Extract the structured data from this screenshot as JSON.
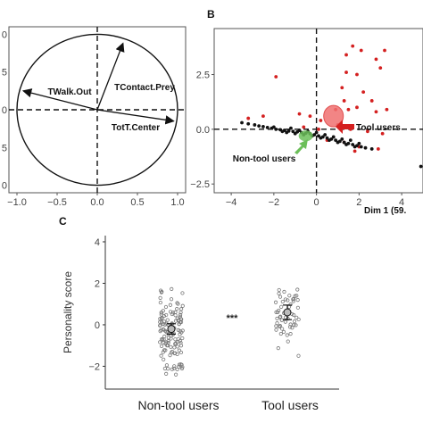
{
  "chart_data": [
    {
      "panel_label": "",
      "type": "scatter",
      "subtype": "correlation-circle",
      "xlim": [
        -1.1,
        1.1
      ],
      "ylim": [
        -1.1,
        1.1
      ],
      "x_ticks": [
        "−1.0",
        "−0.5",
        "0.0",
        "0.5",
        "1.0"
      ],
      "y_ticks": [
        "0",
        "5",
        "0",
        "5",
        "0"
      ],
      "vectors": [
        {
          "name": "TWalk.Out",
          "x": -0.92,
          "y": 0.25
        },
        {
          "name": "TContact.Prey",
          "x": 0.32,
          "y": 0.88
        },
        {
          "name": "TotT.Center",
          "x": 0.95,
          "y": -0.15
        }
      ]
    },
    {
      "panel_label": "B",
      "type": "scatter",
      "xlim": [
        -4.8,
        5.0
      ],
      "ylim": [
        -2.9,
        4.6
      ],
      "x_ticks": [
        "−4",
        "−2",
        "0",
        "2",
        "4"
      ],
      "y_ticks": [
        "2.5",
        "0.0",
        "−2.5"
      ],
      "xlabel": "Dim 1 (59.",
      "annotations": [
        "Tool users",
        "Non-tool users"
      ],
      "centroids": [
        {
          "name": "Tool users",
          "x": 0.8,
          "y": 0.6,
          "color": "#f07070"
        },
        {
          "name": "Non-tool users",
          "x": -0.5,
          "y": -0.3,
          "color": "#6cbf5a"
        }
      ],
      "series": [
        {
          "color": "#d42020",
          "points": [
            [
              1.7,
              3.8
            ],
            [
              2.1,
              3.6
            ],
            [
              2.8,
              3.2
            ],
            [
              3.2,
              3.6
            ],
            [
              1.4,
              3.4
            ],
            [
              3.0,
              2.8
            ],
            [
              1.4,
              2.6
            ],
            [
              1.9,
              2.5
            ],
            [
              -1.9,
              2.4
            ],
            [
              1.2,
              1.9
            ],
            [
              2.2,
              1.7
            ],
            [
              1.3,
              1.3
            ],
            [
              2.6,
              1.3
            ],
            [
              0.9,
              0.9
            ],
            [
              1.5,
              0.9
            ],
            [
              1.9,
              1.0
            ],
            [
              2.8,
              0.8
            ],
            [
              3.3,
              0.9
            ],
            [
              -0.8,
              0.7
            ],
            [
              -0.3,
              0.6
            ],
            [
              0.2,
              0.4
            ],
            [
              1.0,
              0.2
            ],
            [
              1.6,
              0.0
            ],
            [
              2.4,
              -0.1
            ],
            [
              3.1,
              -0.2
            ],
            [
              0.5,
              -0.5
            ],
            [
              1.3,
              -0.6
            ],
            [
              2.0,
              -0.8
            ],
            [
              -3.2,
              0.5
            ],
            [
              -2.5,
              0.6
            ],
            [
              -0.6,
              0.1
            ],
            [
              0.1,
              0.0
            ],
            [
              2.9,
              -0.9
            ],
            [
              1.8,
              -1.0
            ]
          ]
        },
        {
          "color": "#111111",
          "points": [
            [
              -3.5,
              0.3
            ],
            [
              -3.2,
              0.25
            ],
            [
              -2.9,
              0.2
            ],
            [
              -2.7,
              0.15
            ],
            [
              -2.5,
              0.12
            ],
            [
              -2.3,
              0.08
            ],
            [
              -2.1,
              0.05
            ],
            [
              -1.9,
              0.0
            ],
            [
              -1.7,
              -0.02
            ],
            [
              -1.5,
              -0.05
            ],
            [
              -1.3,
              -0.08
            ],
            [
              -1.1,
              -0.1
            ],
            [
              -0.9,
              -0.12
            ],
            [
              -0.7,
              -0.15
            ],
            [
              -0.5,
              -0.18
            ],
            [
              -0.3,
              -0.2
            ],
            [
              -0.1,
              -0.25
            ],
            [
              0.1,
              -0.3
            ],
            [
              0.3,
              -0.35
            ],
            [
              0.5,
              -0.4
            ],
            [
              0.7,
              -0.45
            ],
            [
              0.9,
              -0.5
            ],
            [
              1.1,
              -0.55
            ],
            [
              1.3,
              -0.6
            ],
            [
              1.5,
              -0.65
            ],
            [
              1.7,
              -0.7
            ],
            [
              1.9,
              -0.75
            ],
            [
              2.1,
              -0.8
            ],
            [
              2.3,
              -0.85
            ],
            [
              2.6,
              -0.9
            ],
            [
              -2.0,
              0.1
            ],
            [
              -1.6,
              -0.1
            ],
            [
              -1.2,
              0.05
            ],
            [
              -0.8,
              -0.05
            ],
            [
              -0.4,
              -0.1
            ],
            [
              0.0,
              -0.15
            ],
            [
              0.4,
              -0.25
            ],
            [
              0.8,
              -0.35
            ],
            [
              1.2,
              -0.45
            ],
            [
              1.6,
              -0.5
            ],
            [
              2.0,
              -0.65
            ],
            [
              -1.4,
              -0.15
            ],
            [
              -1.0,
              -0.2
            ],
            [
              -0.6,
              -0.25
            ],
            [
              -0.2,
              -0.3
            ],
            [
              0.2,
              -0.4
            ],
            [
              0.6,
              -0.5
            ],
            [
              1.0,
              -0.6
            ],
            [
              1.4,
              -0.7
            ],
            [
              1.8,
              -0.8
            ],
            [
              4.9,
              -1.7
            ]
          ]
        }
      ]
    },
    {
      "panel_label": "C",
      "type": "scatter",
      "subtype": "strip-plot",
      "ylabel": "Personality score",
      "categories": [
        "Non-tool users",
        "Tool users"
      ],
      "ylim": [
        -3.1,
        4.3
      ],
      "y_ticks": [
        "4",
        "2",
        "0",
        "−2"
      ],
      "significance": "***",
      "means": [
        {
          "category": "Non-tool users",
          "mean": -0.2,
          "ci": [
            -0.45,
            0.05
          ]
        },
        {
          "category": "Tool users",
          "mean": 0.6,
          "ci": [
            0.25,
            0.95
          ]
        }
      ]
    }
  ]
}
